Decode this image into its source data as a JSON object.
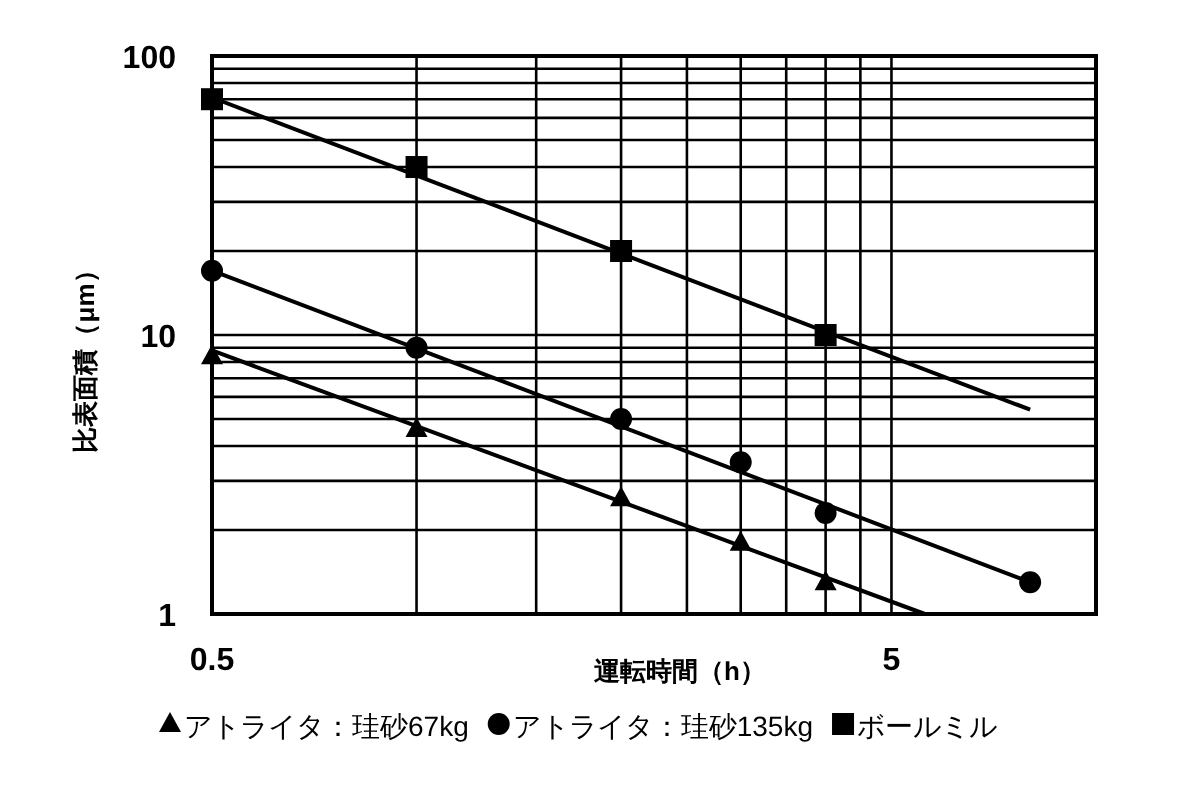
{
  "chart_data": {
    "type": "scatter",
    "log": "xy",
    "xlabel": "運転時間（h）",
    "ylabel": "比表面積（μm）",
    "xlim": [
      0.5,
      10
    ],
    "ylim": [
      1,
      100
    ],
    "xticks": [
      0.5,
      {
        "value": 1,
        "label": null
      },
      {
        "value": 1.5,
        "label": null
      },
      {
        "value": 2,
        "label": null
      },
      {
        "value": 2.5,
        "label": null
      },
      {
        "value": 3,
        "label": null
      },
      {
        "value": 3.5,
        "label": null
      },
      {
        "value": 4,
        "label": null
      },
      {
        "value": 4.5,
        "label": null
      },
      5
    ],
    "yticks": [
      1,
      {
        "value": 2,
        "label": null
      },
      {
        "value": 3,
        "label": null
      },
      {
        "value": 4,
        "label": null
      },
      {
        "value": 5,
        "label": null
      },
      {
        "value": 6,
        "label": null
      },
      {
        "value": 7,
        "label": null
      },
      {
        "value": 8,
        "label": null
      },
      {
        "value": 9,
        "label": null
      },
      10,
      {
        "value": 20,
        "label": null
      },
      {
        "value": 30,
        "label": null
      },
      {
        "value": 40,
        "label": null
      },
      {
        "value": 50,
        "label": null
      },
      {
        "value": 60,
        "label": null
      },
      {
        "value": 70,
        "label": null
      },
      {
        "value": 80,
        "label": null
      },
      {
        "value": 90,
        "label": null
      },
      100
    ],
    "grid": true,
    "legend": "bottom",
    "series": [
      {
        "name": "アトライタ：珪砂67kg",
        "marker": "triangle",
        "color": "#000000",
        "x": [
          0.5,
          1,
          2,
          3,
          4
        ],
        "values": [
          8.4,
          4.6,
          2.6,
          1.8,
          1.3
        ]
      },
      {
        "name": "アトライタ：珪砂135kg",
        "marker": "circle",
        "color": "#000000",
        "x": [
          0.5,
          1,
          2,
          3,
          4,
          8
        ],
        "values": [
          17,
          9,
          5,
          3.5,
          2.3,
          1.3
        ]
      },
      {
        "name": "ボールミル",
        "marker": "square",
        "color": "#000000",
        "x": [
          0.5,
          1,
          2,
          4
        ],
        "values": [
          70,
          40,
          20,
          10
        ]
      },
      {
        "type": "line",
        "color": "#000000",
        "x": [
          0.5,
          5.6
        ],
        "values": [
          8.8,
          1
        ]
      },
      {
        "type": "line",
        "color": "#000000",
        "x": [
          0.5,
          8
        ],
        "values": [
          17,
          1.3
        ]
      },
      {
        "type": "line",
        "color": "#000000",
        "x": [
          0.5,
          8
        ],
        "values": [
          71,
          5.4
        ]
      }
    ]
  }
}
